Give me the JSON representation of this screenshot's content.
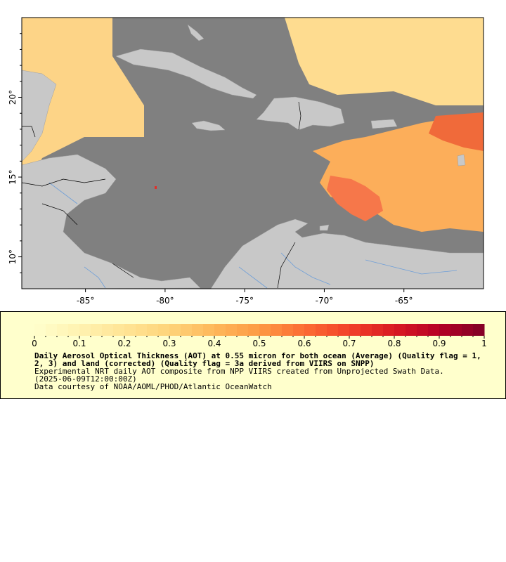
{
  "map": {
    "x_axis": {
      "ticks": [
        "-85°",
        "-80°",
        "-75°",
        "-70°",
        "-65°"
      ],
      "values": [
        -85,
        -80,
        -75,
        -70,
        -65
      ]
    },
    "y_axis": {
      "ticks": [
        "20°",
        "15°",
        "10°"
      ],
      "values": [
        20,
        15,
        10
      ]
    },
    "extent": {
      "lon": [
        -89,
        -60
      ],
      "lat": [
        8,
        25
      ]
    },
    "colors": {
      "ocean": "#808080",
      "land": "#c8c8c8",
      "river": "#6f9fd8",
      "border": "#000000"
    }
  },
  "legend": {
    "colorbar_ticks": [
      "0",
      "0.1",
      "0.2",
      "0.3",
      "0.4",
      "0.5",
      "0.6",
      "0.7",
      "0.8",
      "0.9",
      "1"
    ],
    "range": [
      0,
      1
    ],
    "title": "Daily Aerosol Optical Thickness (AOT) at 0.55 micron for both ocean (Average) (Quality flag = 1, 2, 3) and land (corrected) (Quality flag = 3a derived from VIIRS on SNPP)",
    "description": "Experimental NRT daily AOT composite from NPP VIIRS created from Unprojected Swath Data.",
    "timestamp": "(2025-06-09T12:00:00Z)",
    "credit": "Data courtesy of NOAA/AOML/PHOD/Atlantic OceanWatch",
    "colormap": [
      "#ffffcc",
      "#fff2b0",
      "#ffe495",
      "#fed47a",
      "#feb75a",
      "#fd9a44",
      "#fc6c33",
      "#f2412a",
      "#d91a22",
      "#b50026",
      "#800026"
    ]
  }
}
